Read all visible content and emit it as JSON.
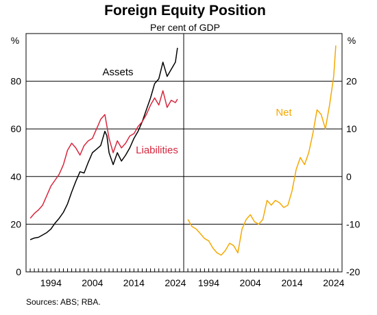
{
  "chart_data": {
    "type": "line",
    "title": "Foreign Equity Position",
    "subtitle": "Per cent of GDP",
    "source": "Sources: ABS; RBA.",
    "x_tick_labels": [
      "1994",
      "2004",
      "2014",
      "2024"
    ],
    "panels": [
      {
        "unit": "%",
        "ylim": [
          0,
          100
        ],
        "y_ticks": [
          0,
          20,
          40,
          60,
          80
        ],
        "series": [
          {
            "name": "Assets",
            "color": "#000000",
            "points": [
              [
                1989.0,
                13.5
              ],
              [
                1990.0,
                14.2
              ],
              [
                1991.0,
                14.5
              ],
              [
                1992.0,
                15.5
              ],
              [
                1993.0,
                16.5
              ],
              [
                1994.0,
                18.0
              ],
              [
                1995.0,
                20.5
              ],
              [
                1996.0,
                22.5
              ],
              [
                1997.0,
                25.0
              ],
              [
                1998.0,
                28.5
              ],
              [
                1999.0,
                33.5
              ],
              [
                2000.0,
                38.0
              ],
              [
                2001.0,
                42.0
              ],
              [
                2002.0,
                41.5
              ],
              [
                2003.0,
                46.0
              ],
              [
                2004.0,
                50.0
              ],
              [
                2005.0,
                51.5
              ],
              [
                2006.0,
                53.0
              ],
              [
                2007.0,
                59.0
              ],
              [
                2007.5,
                57.0
              ],
              [
                2008.0,
                50.0
              ],
              [
                2009.0,
                45.0
              ],
              [
                2010.0,
                50.0
              ],
              [
                2011.0,
                46.5
              ],
              [
                2012.0,
                49.0
              ],
              [
                2013.0,
                52.0
              ],
              [
                2014.0,
                56.0
              ],
              [
                2015.0,
                59.0
              ],
              [
                2016.0,
                63.0
              ],
              [
                2017.0,
                68.0
              ],
              [
                2018.0,
                73.0
              ],
              [
                2019.0,
                79.0
              ],
              [
                2020.0,
                81.0
              ],
              [
                2021.0,
                88.0
              ],
              [
                2022.0,
                82.0
              ],
              [
                2023.0,
                85.0
              ],
              [
                2024.0,
                88.0
              ],
              [
                2024.5,
                94.0
              ]
            ]
          },
          {
            "name": "Liabilities",
            "color": "#d7263d",
            "points": [
              [
                1989.0,
                22.5
              ],
              [
                1990.0,
                24.5
              ],
              [
                1991.0,
                26.0
              ],
              [
                1992.0,
                28.0
              ],
              [
                1993.0,
                32.0
              ],
              [
                1994.0,
                36.0
              ],
              [
                1995.0,
                38.5
              ],
              [
                1996.0,
                41.0
              ],
              [
                1997.0,
                45.0
              ],
              [
                1998.0,
                51.0
              ],
              [
                1999.0,
                54.0
              ],
              [
                2000.0,
                52.0
              ],
              [
                2001.0,
                49.0
              ],
              [
                2002.0,
                53.0
              ],
              [
                2003.0,
                55.0
              ],
              [
                2004.0,
                56.0
              ],
              [
                2005.0,
                60.0
              ],
              [
                2006.0,
                64.0
              ],
              [
                2007.0,
                66.0
              ],
              [
                2008.0,
                56.0
              ],
              [
                2009.0,
                50.0
              ],
              [
                2010.0,
                55.0
              ],
              [
                2011.0,
                52.0
              ],
              [
                2012.0,
                54.0
              ],
              [
                2013.0,
                57.0
              ],
              [
                2014.0,
                58.0
              ],
              [
                2015.0,
                61.0
              ],
              [
                2016.0,
                63.0
              ],
              [
                2017.0,
                66.0
              ],
              [
                2018.0,
                70.0
              ],
              [
                2019.0,
                73.0
              ],
              [
                2020.0,
                70.0
              ],
              [
                2021.0,
                76.0
              ],
              [
                2022.0,
                69.0
              ],
              [
                2023.0,
                72.0
              ],
              [
                2024.0,
                71.0
              ],
              [
                2024.5,
                72.5
              ]
            ]
          }
        ]
      },
      {
        "unit": "%",
        "ylim": [
          -20,
          30
        ],
        "y_ticks": [
          -20,
          -10,
          0,
          10,
          20
        ],
        "series": [
          {
            "name": "Net",
            "color": "#f5a800",
            "points": [
              [
                1989.0,
                -9.0
              ],
              [
                1990.0,
                -10.5
              ],
              [
                1991.0,
                -11.0
              ],
              [
                1992.0,
                -12.0
              ],
              [
                1993.0,
                -13.0
              ],
              [
                1994.0,
                -13.5
              ],
              [
                1995.0,
                -15.0
              ],
              [
                1996.0,
                -16.0
              ],
              [
                1997.0,
                -16.5
              ],
              [
                1998.0,
                -15.5
              ],
              [
                1999.0,
                -14.0
              ],
              [
                2000.0,
                -14.5
              ],
              [
                2001.0,
                -16.0
              ],
              [
                2002.0,
                -11.0
              ],
              [
                2003.0,
                -9.0
              ],
              [
                2004.0,
                -8.0
              ],
              [
                2005.0,
                -9.5
              ],
              [
                2006.0,
                -10.0
              ],
              [
                2007.0,
                -9.0
              ],
              [
                2008.0,
                -5.0
              ],
              [
                2009.0,
                -6.0
              ],
              [
                2010.0,
                -5.0
              ],
              [
                2011.0,
                -5.5
              ],
              [
                2012.0,
                -6.5
              ],
              [
                2013.0,
                -6.0
              ],
              [
                2014.0,
                -3.0
              ],
              [
                2015.0,
                1.5
              ],
              [
                2016.0,
                4.0
              ],
              [
                2017.0,
                2.5
              ],
              [
                2018.0,
                5.0
              ],
              [
                2019.0,
                9.0
              ],
              [
                2020.0,
                14.0
              ],
              [
                2021.0,
                13.0
              ],
              [
                2022.0,
                10.0
              ],
              [
                2023.0,
                15.0
              ],
              [
                2024.0,
                21.0
              ],
              [
                2024.5,
                27.5
              ]
            ]
          }
        ]
      }
    ]
  }
}
